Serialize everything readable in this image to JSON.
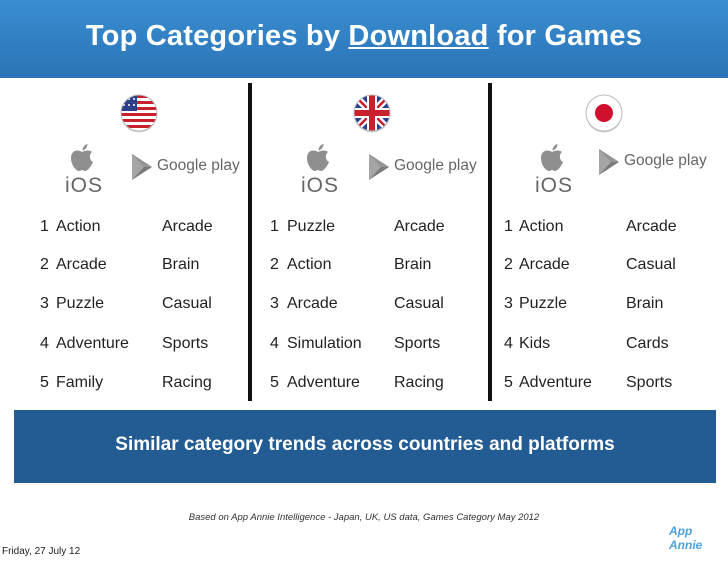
{
  "slide": {
    "title_before": "Top Categories by ",
    "title_underlined": "Download",
    "title_after": " for Games"
  },
  "countries": [
    {
      "flag": "us-flag-icon",
      "ios_label": "iOS",
      "play_label": "Google play",
      "ios": [
        {
          "rank": "1",
          "name": "Action"
        },
        {
          "rank": "2",
          "name": "Arcade"
        },
        {
          "rank": "3",
          "name": "Puzzle"
        },
        {
          "rank": "4",
          "name": "Adventure"
        },
        {
          "rank": "5",
          "name": "Family"
        }
      ],
      "play": [
        "Arcade",
        "Brain",
        "Casual",
        "Sports",
        "Racing"
      ]
    },
    {
      "flag": "uk-flag-icon",
      "ios_label": "iOS",
      "play_label": "Google play",
      "ios": [
        {
          "rank": "1",
          "name": "Puzzle"
        },
        {
          "rank": "2",
          "name": "Action"
        },
        {
          "rank": "3",
          "name": "Arcade"
        },
        {
          "rank": "4",
          "name": "Simulation"
        },
        {
          "rank": "5",
          "name": "Adventure"
        }
      ],
      "play": [
        "Arcade",
        "Brain",
        "Casual",
        "Sports",
        "Racing"
      ]
    },
    {
      "flag": "japan-flag-icon",
      "ios_label": "iOS",
      "play_label": "Google play",
      "ios": [
        {
          "rank": "1",
          "name": "Action"
        },
        {
          "rank": "2",
          "name": "Arcade"
        },
        {
          "rank": "3",
          "name": "Puzzle"
        },
        {
          "rank": "4",
          "name": "Kids"
        },
        {
          "rank": "5",
          "name": "Adventure"
        }
      ],
      "play": [
        "Arcade",
        "Casual",
        "Brain",
        "Cards",
        "Sports"
      ]
    }
  ],
  "summary": "Similar category trends across countries and platforms",
  "source_note": "Based on App Annie Intelligence - Japan, UK, US data, Games Category May 2012",
  "date": "Friday, 27 July 12",
  "brand": "App Annie",
  "colors": {
    "banner": "#2e80c5",
    "summary_bar": "#235c92",
    "brand": "#4ea1dc"
  }
}
